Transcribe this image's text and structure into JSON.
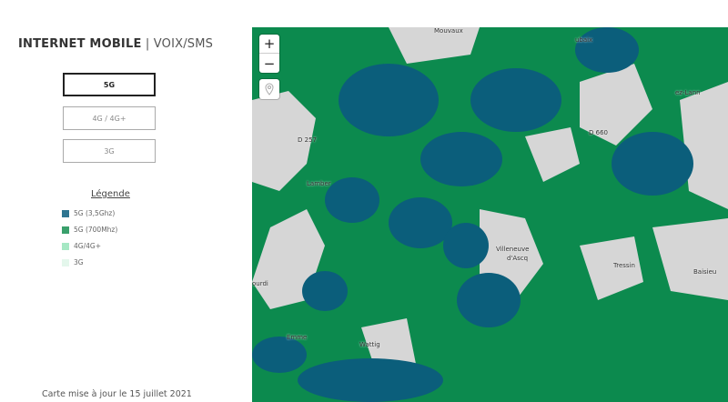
{
  "header": {
    "title_bold": "INTERNET MOBILE",
    "separator": " | ",
    "title_light": "VOIX/SMS"
  },
  "tech_buttons": [
    {
      "label": "5G",
      "active": true
    },
    {
      "label": "4G / 4G+",
      "active": false
    },
    {
      "label": "3G",
      "active": false
    }
  ],
  "legend": {
    "title": "Légende",
    "items": [
      {
        "label": "5G (3,5Ghz)",
        "color": "#2e7591"
      },
      {
        "label": "5G (700Mhz)",
        "color": "#3aa06c"
      },
      {
        "label": "4G/4G+",
        "color": "#a6e8c4"
      },
      {
        "label": "3G",
        "color": "#e4f7ec"
      }
    ]
  },
  "footer": "Carte mise à jour le 15 juillet 2021",
  "map": {
    "zoom_in": "+",
    "zoom_out": "−",
    "colors": {
      "5g_35": "#0b5e7b",
      "5g_700": "#0c8a4e",
      "base": "#d6d6d6"
    },
    "labels": [
      "Mouvaux",
      "ubaix",
      "Lamber",
      "D 257",
      "D 660",
      "Villeneuve",
      "d'Ascq",
      "Tressin",
      "Baisieu",
      "Wattig",
      "Emme",
      "ez-Lann",
      "ourdi"
    ]
  }
}
